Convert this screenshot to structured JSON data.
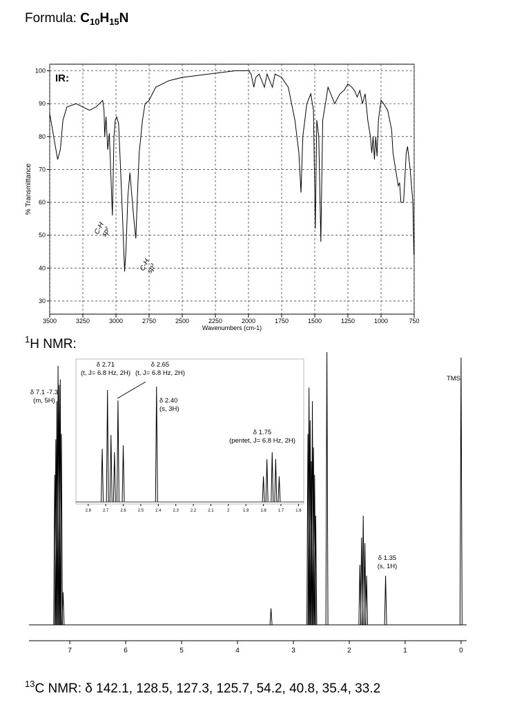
{
  "formula": {
    "label": "Formula:",
    "parts": [
      "C",
      "10",
      "H",
      "15",
      "N"
    ]
  },
  "nmr_heading": {
    "sup": "1",
    "text": "H NMR:"
  },
  "c13": {
    "sup": "13",
    "text": "C NMR: δ 142.1, 128.5, 127.3, 125.7, 54.2, 40.8, 35.4, 33.2"
  },
  "chart_data": [
    {
      "type": "line",
      "title": "IR:",
      "xlabel": "Wavenumbers (cm-1)",
      "ylabel": "% Transmittance",
      "color": "#000000",
      "x": [
        3500,
        3470,
        3440,
        3420,
        3400,
        3370,
        3300,
        3250,
        3200,
        3150,
        3100,
        3090,
        3085,
        3075,
        3062,
        3050,
        3040,
        3027,
        3015,
        3005,
        2995,
        2980,
        2965,
        2950,
        2935,
        2925,
        2910,
        2895,
        2880,
        2865,
        2850,
        2840,
        2825,
        2800,
        2780,
        2750,
        2700,
        2600,
        2500,
        2300,
        2100,
        2000,
        1980,
        1960,
        1945,
        1920,
        1880,
        1860,
        1820,
        1800,
        1750,
        1700,
        1650,
        1620,
        1604,
        1590,
        1560,
        1530,
        1510,
        1496,
        1485,
        1470,
        1454,
        1440,
        1420,
        1400,
        1370,
        1350,
        1310,
        1280,
        1250,
        1220,
        1200,
        1180,
        1160,
        1140,
        1120,
        1100,
        1080,
        1070,
        1060,
        1050,
        1040,
        1030,
        1020,
        1000,
        980,
        950,
        920,
        910,
        890,
        870,
        860,
        850,
        830,
        810,
        800,
        780,
        760,
        752
      ],
      "values": [
        87,
        80,
        73,
        76,
        85,
        89,
        90,
        89,
        88,
        89,
        91,
        88,
        80,
        86,
        76,
        81,
        70,
        56,
        80,
        85,
        86,
        84,
        70,
        55,
        39,
        45,
        62,
        69,
        62,
        55,
        49,
        60,
        75,
        85,
        90,
        91,
        95,
        97,
        98,
        99,
        100,
        100,
        99,
        95,
        98,
        99,
        95,
        99,
        95,
        99,
        98,
        95,
        85,
        75,
        63,
        80,
        90,
        93,
        88,
        52,
        85,
        80,
        48,
        85,
        90,
        95,
        92,
        90,
        93,
        94,
        96,
        95,
        94,
        92,
        94,
        90,
        93,
        85,
        80,
        75,
        80,
        73,
        80,
        74,
        85,
        91,
        90,
        88,
        82,
        75,
        70,
        65,
        66,
        60,
        60,
        75,
        77,
        70,
        60,
        44
      ],
      "xlim": [
        3500,
        750
      ],
      "ylim": [
        26,
        102
      ],
      "xticks": [
        3500,
        3250,
        3000,
        2750,
        2500,
        2250,
        2000,
        1750,
        1500,
        1250,
        1000,
        750
      ],
      "yticks": [
        30,
        40,
        50,
        60,
        70,
        80,
        90,
        100
      ],
      "grid": true,
      "annotations": [
        {
          "text": "C-H",
          "sub": "sp²"
        },
        {
          "text": "C-H",
          "sub": "sp³"
        }
      ]
    },
    {
      "type": "spectrum",
      "color": "#000000",
      "x": [
        7.27,
        7.25,
        7.23,
        7.21,
        7.19,
        7.17,
        7.15,
        7.12,
        3.4,
        2.74,
        2.72,
        2.7,
        2.68,
        2.66,
        2.64,
        2.62,
        2.6,
        2.4,
        1.81,
        1.78,
        1.75,
        1.72,
        1.69,
        1.35,
        0.0
      ],
      "values": [
        55,
        68,
        82,
        95,
        88,
        90,
        70,
        12,
        6,
        70,
        87,
        75,
        60,
        82,
        65,
        55,
        40,
        100,
        22,
        32,
        40,
        30,
        18,
        18,
        98
      ],
      "xlim": [
        7.73,
        -0.1
      ],
      "xticks": [
        7,
        6,
        5,
        4,
        3,
        2,
        1,
        0
      ],
      "annotations": [
        {
          "lines": [
            "δ 7.1 -7.3",
            "(m, 5H)"
          ]
        },
        {
          "lines": [
            "δ 1.35",
            "(s, 1H)"
          ]
        },
        {
          "lines": [
            "TMS"
          ]
        }
      ]
    },
    {
      "type": "spectrum",
      "color": "#000000",
      "x": [
        2.72,
        2.69,
        2.67,
        2.65,
        2.63,
        2.6,
        2.41,
        1.8,
        1.78,
        1.75,
        1.73,
        1.71
      ],
      "values": [
        77,
        162,
        97,
        72,
        147,
        82,
        167,
        37,
        62,
        72,
        62,
        37
      ],
      "xlim": [
        2.87,
        1.57
      ],
      "xticks": [
        2.8,
        2.7,
        2.6,
        2.5,
        2.4,
        2.3,
        2.2,
        2.1,
        2.0,
        1.9,
        1.8,
        1.7,
        1.6
      ],
      "annotations": [
        {
          "lines": [
            "δ 2.71",
            "(t, J= 6.8 Hz, 2H)"
          ]
        },
        {
          "lines": [
            "δ 2.65",
            "(t, J= 6.8 Hz, 2H)"
          ]
        },
        {
          "lines": [
            "δ 2.40",
            "(s, 3H)"
          ]
        },
        {
          "lines": [
            "δ 1.75",
            "(pentet, J= 6.8 Hz, 2H)"
          ]
        }
      ]
    }
  ]
}
